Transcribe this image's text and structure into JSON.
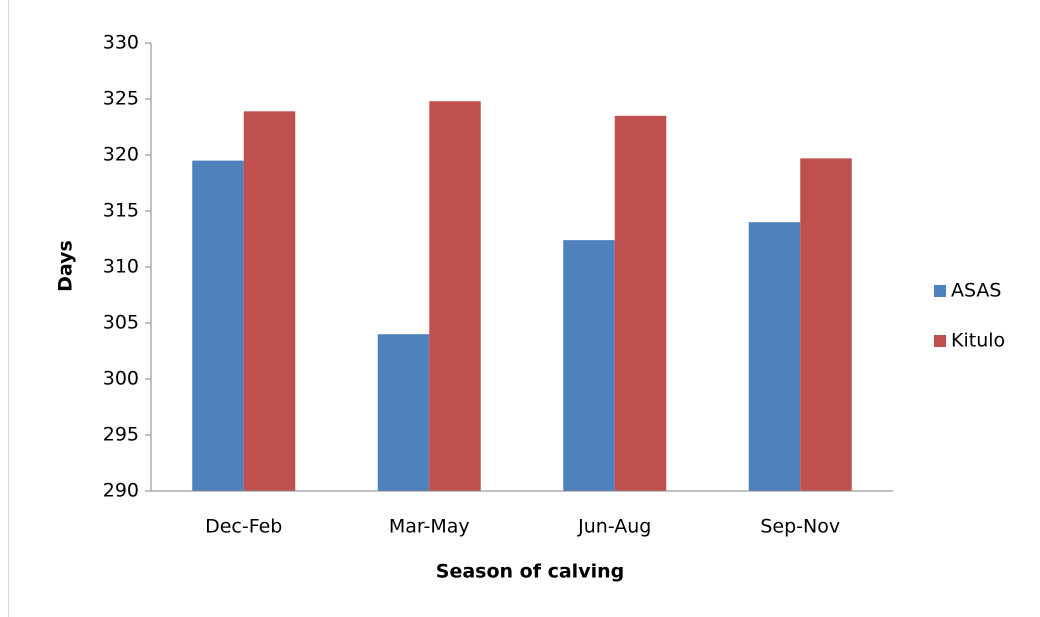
{
  "chart_data": {
    "type": "bar",
    "x_label": "Season of calving",
    "y_label": "Days",
    "categories": [
      "Dec-Feb",
      "Mar-May",
      "Jun-Aug",
      "Sep-Nov"
    ],
    "series": [
      {
        "name": "ASAS",
        "color": "#4f81bd",
        "values": [
          319.5,
          304.0,
          312.4,
          314.0
        ]
      },
      {
        "name": "Kitulo",
        "color": "#c0504d",
        "values": [
          323.9,
          324.8,
          323.5,
          319.7
        ]
      }
    ],
    "ylim": [
      290,
      330
    ],
    "yticks": [
      290,
      295,
      300,
      305,
      310,
      315,
      320,
      325,
      330
    ],
    "grid": false,
    "legend": "right"
  }
}
